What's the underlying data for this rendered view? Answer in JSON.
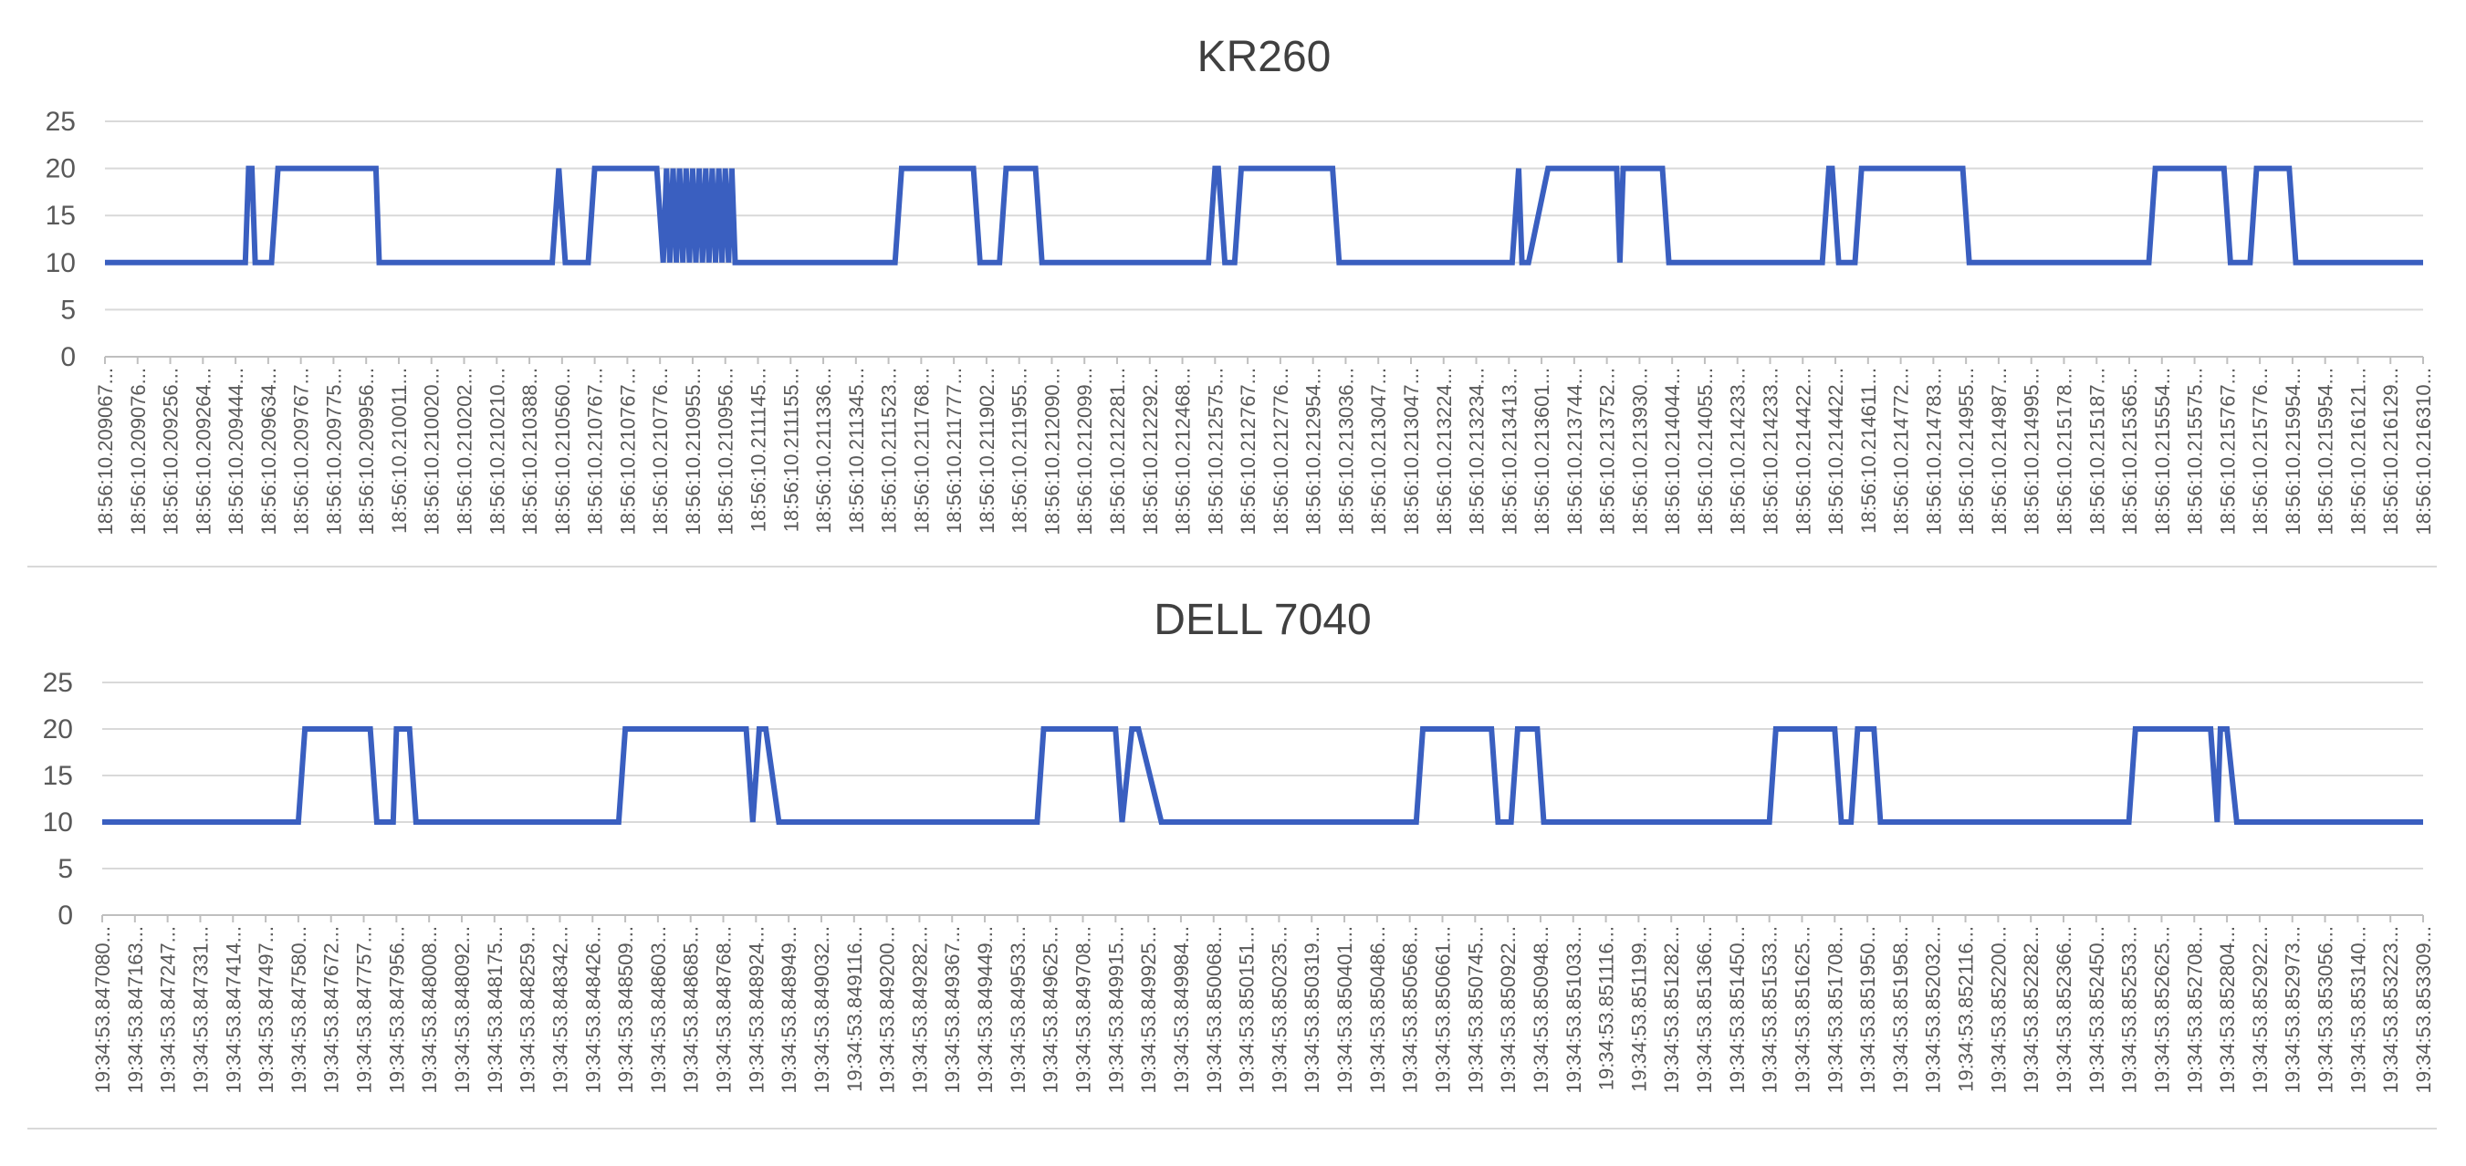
{
  "chart_data": [
    {
      "type": "line",
      "title": "KR260",
      "xlabel": "",
      "ylabel": "",
      "ylim": [
        0,
        25
      ],
      "yticks": [
        0,
        5,
        10,
        15,
        20,
        25
      ],
      "grid": true,
      "legend": "none",
      "color": "#3a5fc0",
      "categories": [
        "18:56:10.209067...",
        "18:56:10.209076...",
        "18:56:10.209256...",
        "18:56:10.209264...",
        "18:56:10.209444...",
        "18:56:10.209634...",
        "18:56:10.209767...",
        "18:56:10.209775...",
        "18:56:10.209956...",
        "18:56:10.210011...",
        "18:56:10.210020...",
        "18:56:10.210202...",
        "18:56:10.210210...",
        "18:56:10.210388...",
        "18:56:10.210560...",
        "18:56:10.210767...",
        "18:56:10.210767...",
        "18:56:10.210776...",
        "18:56:10.210955...",
        "18:56:10.210956...",
        "18:56:10.211145...",
        "18:56:10.211155...",
        "18:56:10.211336...",
        "18:56:10.211345...",
        "18:56:10.211523...",
        "18:56:10.211768...",
        "18:56:10.211777...",
        "18:56:10.211902...",
        "18:56:10.211955...",
        "18:56:10.212090...",
        "18:56:10.212099...",
        "18:56:10.212281...",
        "18:56:10.212292...",
        "18:56:10.212468...",
        "18:56:10.212575...",
        "18:56:10.212767...",
        "18:56:10.212776...",
        "18:56:10.212954...",
        "18:56:10.213036...",
        "18:56:10.213047...",
        "18:56:10.213047...",
        "18:56:10.213224...",
        "18:56:10.213234...",
        "18:56:10.213413...",
        "18:56:10.213601...",
        "18:56:10.213744...",
        "18:56:10.213752...",
        "18:56:10.213930...",
        "18:56:10.214044...",
        "18:56:10.214055...",
        "18:56:10.214233...",
        "18:56:10.214233...",
        "18:56:10.214422...",
        "18:56:10.214422...",
        "18:56:10.214611...",
        "18:56:10.214772...",
        "18:56:10.214783...",
        "18:56:10.214955...",
        "18:56:10.214987...",
        "18:56:10.214995...",
        "18:56:10.215178...",
        "18:56:10.215187...",
        "18:56:10.215365...",
        "18:56:10.215554...",
        "18:56:10.215575...",
        "18:56:10.215767...",
        "18:56:10.215776...",
        "18:56:10.215954...",
        "18:56:10.215954...",
        "18:56:10.216121...",
        "18:56:10.216129...",
        "18:56:10.216310..."
      ],
      "series": [
        {
          "x": [
            0,
            4.3,
            4.4,
            4.5,
            4.6,
            5.1,
            5.3,
            8.3,
            8.4,
            13.7,
            13.9,
            14.1,
            14.8,
            15.0,
            16.9,
            17.1,
            17.2,
            17.3,
            17.4,
            17.5,
            17.6,
            17.7,
            17.8,
            17.9,
            18.0,
            18.1,
            18.2,
            18.3,
            18.4,
            18.5,
            18.6,
            18.7,
            18.8,
            18.9,
            19.0,
            19.1,
            19.2,
            19.3,
            19.4,
            24.2,
            24.4,
            26.6,
            26.8,
            27.4,
            27.6,
            28.5,
            28.7,
            33.8,
            34.0,
            34.1,
            34.3,
            34.6,
            34.8,
            37.6,
            37.8,
            43.1,
            43.3,
            43.4,
            43.6,
            44.2,
            44.4,
            46.3,
            46.4,
            46.5,
            46.6,
            47.7,
            47.9,
            52.6,
            52.8,
            52.9,
            53.1,
            53.6,
            53.8,
            56.9,
            57.1,
            62.6,
            62.8,
            64.9,
            65.1,
            65.7,
            65.9,
            66.9,
            67.1,
            71
          ],
          "y": [
            10,
            10,
            20,
            20,
            10,
            10,
            20,
            20,
            10,
            10,
            20,
            10,
            10,
            20,
            20,
            10,
            20,
            10,
            20,
            10,
            20,
            10,
            20,
            10,
            20,
            10,
            20,
            10,
            20,
            10,
            20,
            10,
            20,
            10,
            20,
            10,
            20,
            10,
            10,
            10,
            20,
            20,
            10,
            10,
            20,
            20,
            10,
            10,
            20,
            20,
            10,
            10,
            20,
            20,
            10,
            10,
            20,
            10,
            10,
            20,
            20,
            20,
            10,
            20,
            20,
            20,
            10,
            10,
            20,
            20,
            10,
            10,
            20,
            20,
            10,
            10,
            20,
            20,
            10,
            10,
            20,
            20,
            10,
            10
          ]
        }
      ]
    },
    {
      "type": "line",
      "title": "DELL 7040",
      "xlabel": "",
      "ylabel": "",
      "ylim": [
        0,
        25
      ],
      "yticks": [
        0,
        5,
        10,
        15,
        20,
        25
      ],
      "grid": true,
      "legend": "none",
      "color": "#3a5fc0",
      "categories": [
        "19:34:53.847080...",
        "19:34:53.847163...",
        "19:34:53.847247...",
        "19:34:53.847331...",
        "19:34:53.847414...",
        "19:34:53.847497...",
        "19:34:53.847580...",
        "19:34:53.847672...",
        "19:34:53.847757...",
        "19:34:53.847956...",
        "19:34:53.848008...",
        "19:34:53.848092...",
        "19:34:53.848175...",
        "19:34:53.848259...",
        "19:34:53.848342...",
        "19:34:53.848426...",
        "19:34:53.848509...",
        "19:34:53.848603...",
        "19:34:53.848685...",
        "19:34:53.848768...",
        "19:34:53.848924...",
        "19:34:53.848949...",
        "19:34:53.849032...",
        "19:34:53.849116...",
        "19:34:53.849200...",
        "19:34:53.849282...",
        "19:34:53.849367...",
        "19:34:53.849449...",
        "19:34:53.849533...",
        "19:34:53.849625...",
        "19:34:53.849708...",
        "19:34:53.849915...",
        "19:34:53.849925...",
        "19:34:53.849984...",
        "19:34:53.850068...",
        "19:34:53.850151...",
        "19:34:53.850235...",
        "19:34:53.850319...",
        "19:34:53.850401...",
        "19:34:53.850486...",
        "19:34:53.850568...",
        "19:34:53.850661...",
        "19:34:53.850745...",
        "19:34:53.850922...",
        "19:34:53.850948...",
        "19:34:53.851033...",
        "19:34:53.851116...",
        "19:34:53.851199...",
        "19:34:53.851282...",
        "19:34:53.851366...",
        "19:34:53.851450...",
        "19:34:53.851533...",
        "19:34:53.851625...",
        "19:34:53.851708...",
        "19:34:53.851950...",
        "19:34:53.851958...",
        "19:34:53.852032...",
        "19:34:53.852116...",
        "19:34:53.852200...",
        "19:34:53.852282...",
        "19:34:53.852366...",
        "19:34:53.852450...",
        "19:34:53.852533...",
        "19:34:53.852625...",
        "19:34:53.852708...",
        "19:34:53.852804...",
        "19:34:53.852922...",
        "19:34:53.852973...",
        "19:34:53.853056...",
        "19:34:53.853140...",
        "19:34:53.853223...",
        "19:34:53.853309..."
      ],
      "series": [
        {
          "x": [
            0,
            6.0,
            6.2,
            8.2,
            8.4,
            8.9,
            9.0,
            9.4,
            9.6,
            15.8,
            16.0,
            19.7,
            19.9,
            20.1,
            20.3,
            20.7,
            20.9,
            28.6,
            28.8,
            31.0,
            31.2,
            31.5,
            31.7,
            32.4,
            32.6,
            40.2,
            40.4,
            42.5,
            42.7,
            43.1,
            43.3,
            43.9,
            44.1,
            51.0,
            51.2,
            53.0,
            53.2,
            53.5,
            53.7,
            54.2,
            54.4,
            62.0,
            62.2,
            64.5,
            64.7,
            64.8,
            65.0,
            65.3,
            65.5,
            71
          ],
          "y": [
            10,
            10,
            20,
            20,
            10,
            10,
            20,
            20,
            10,
            10,
            20,
            20,
            10,
            20,
            20,
            10,
            10,
            10,
            20,
            20,
            10,
            20,
            20,
            10,
            10,
            10,
            20,
            20,
            10,
            10,
            20,
            20,
            10,
            10,
            20,
            20,
            10,
            10,
            20,
            20,
            10,
            10,
            20,
            20,
            10,
            20,
            20,
            10,
            10,
            10
          ]
        }
      ]
    }
  ]
}
